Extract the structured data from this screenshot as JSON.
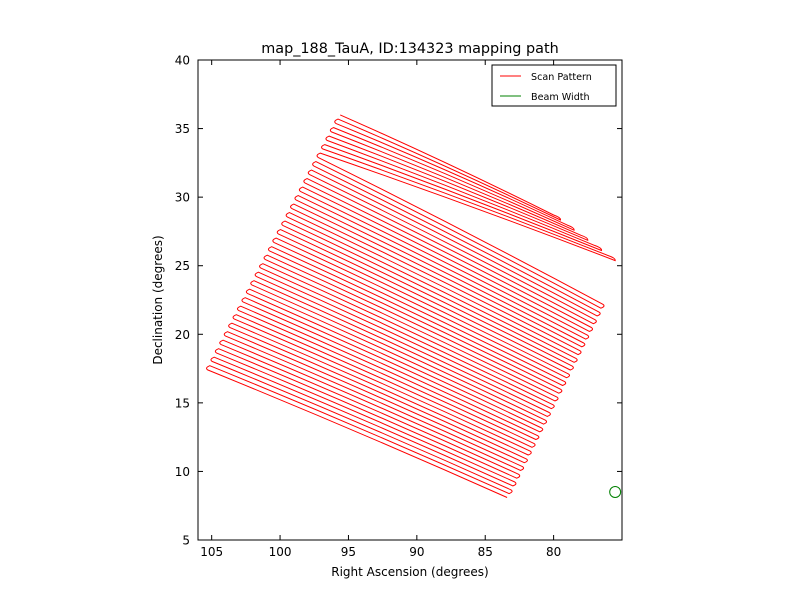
{
  "chart_data": {
    "type": "line",
    "title": "map_188_TauA, ID:134323 mapping path",
    "xlabel": "Right Ascension (degrees)",
    "ylabel": "Declination (degrees)",
    "xlim": [
      106.0,
      75.0
    ],
    "ylim": [
      5,
      40
    ],
    "x_inverted": true,
    "xticks": [
      105,
      100,
      95,
      90,
      85,
      80
    ],
    "yticks": [
      5,
      10,
      15,
      20,
      25,
      30,
      35,
      40
    ],
    "grid": false,
    "legend": {
      "placement": "top-right",
      "entries": [
        {
          "label": "Scan Pattern",
          "color": "#ff0000"
        },
        {
          "label": "Beam Width",
          "color": "#008000"
        }
      ]
    },
    "series": [
      {
        "name": "Scan Pattern",
        "color": "#ff0000",
        "kind": "raster_scan",
        "corners": {
          "top_left": [
            95.6,
            36.0
          ],
          "top_right": [
            75.0,
            25.0
          ],
          "bottom_left": [
            105.3,
            17.4
          ],
          "bottom_right": [
            83.4,
            8.1
          ]
        },
        "left_end_top": [
          95.6,
          36.0
        ],
        "right_end_top": [
          80.0,
          28.7
        ],
        "num_rows": 61
      },
      {
        "name": "Beam Width",
        "color": "#008000",
        "kind": "circle",
        "center": [
          75.5,
          8.5
        ],
        "diameter": 0.8
      }
    ]
  }
}
